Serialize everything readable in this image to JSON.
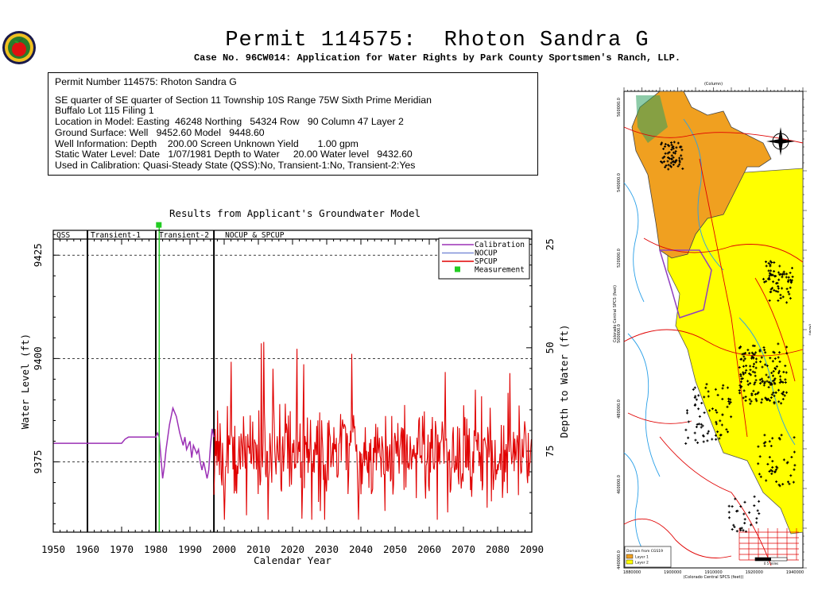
{
  "header": {
    "title": "Permit 114575:  Rhoton Sandra G",
    "subtitle": "Case No. 96CW014: Application for Water Rights by Park County Sportsmen's Ranch, LLP."
  },
  "info": {
    "line1": "Permit Number 114575: Rhoton Sandra G",
    "line2": "SE quarter of SE quarter of Section 11 Township 10S Range 75W Sixth Prime Meridian",
    "line3": "Buffalo Lot 115 Filing 1",
    "line4": "Location in Model: Easting  46248 Northing   54324 Row   90 Column 47 Layer 2",
    "line5": "Ground Surface: Well   9452.60 Model   9448.60",
    "line6": "Well Information: Depth    200.00 Screen Unknown Yield       1.00 gpm",
    "line7": "Static Water Level: Date   1/07/1981 Depth to Water     20.00 Water level   9432.60",
    "line8": "Used in Calibration: Quasi-Steady State (QSS):No, Transient-1:No, Transient-2:Yes"
  },
  "colors": {
    "calibration": "#9b30b5",
    "nocup": "#7f8fd8",
    "spcup": "#e00000",
    "measurement": "#22cc22",
    "map_orange": "#f0a020",
    "map_yellow": "#ffff00",
    "map_green": "#2fa060"
  },
  "chart_data": {
    "type": "line",
    "title": "Results from Applicant's Groundwater Model",
    "xlabel": "Calendar Year",
    "ylabel": "Water Level (ft)",
    "y2label": "Depth to Water (ft)",
    "xlim": [
      1950,
      2090
    ],
    "ylim": [
      9358,
      9431
    ],
    "xticks": [
      1950,
      1960,
      1970,
      1980,
      1990,
      2000,
      2010,
      2020,
      2030,
      2040,
      2050,
      2060,
      2070,
      2080,
      2090
    ],
    "yticks": [
      9375,
      9400,
      9425
    ],
    "y2ticks": [
      25,
      50,
      75
    ],
    "grid": true,
    "periods": [
      {
        "label": "QSS",
        "start": 1950,
        "end": 1960
      },
      {
        "label": "Transient-1",
        "start": 1960,
        "end": 1980
      },
      {
        "label": "Transient-2",
        "start": 1980,
        "end": 1997
      },
      {
        "label": "NOCUP  &  SPCUP",
        "start": 1997,
        "end": 2090
      }
    ],
    "legend": {
      "position": "top-right",
      "entries": [
        "Calibration",
        "NOCUP",
        "SPCUP",
        "Measurement"
      ]
    },
    "series": [
      {
        "name": "Calibration",
        "points": [
          [
            1950,
            9379.5
          ],
          [
            1960,
            9379.5
          ],
          [
            1970,
            9379.5
          ],
          [
            1971,
            9380.5
          ],
          [
            1972,
            9381
          ],
          [
            1980,
            9381
          ],
          [
            1980.5,
            9382
          ],
          [
            1981,
            9381
          ],
          [
            1981.5,
            9376
          ],
          [
            1982,
            9371
          ],
          [
            1982.5,
            9374
          ],
          [
            1983,
            9378
          ],
          [
            1984,
            9384
          ],
          [
            1985,
            9388
          ],
          [
            1986,
            9386
          ],
          [
            1987,
            9382
          ],
          [
            1988,
            9379
          ],
          [
            1988.5,
            9381
          ],
          [
            1989,
            9378
          ],
          [
            1990,
            9380
          ],
          [
            1990.5,
            9376
          ],
          [
            1991,
            9379
          ],
          [
            1992,
            9377
          ],
          [
            1992.5,
            9378
          ],
          [
            1993,
            9375
          ],
          [
            1993.5,
            9373
          ],
          [
            1994,
            9375
          ],
          [
            1995,
            9371
          ],
          [
            1995.5,
            9373
          ],
          [
            1996,
            9379
          ],
          [
            1996.5,
            9383
          ],
          [
            1997,
            9381
          ]
        ]
      },
      {
        "name": "SPCUP",
        "seed": 114575,
        "x_start": 1997,
        "x_end": 2090,
        "baseline": 9377,
        "amplitude": 8,
        "range": [
          9361,
          9404
        ]
      },
      {
        "name": "Measurement",
        "points": [
          [
            1981,
            9432.6
          ]
        ]
      }
    ]
  },
  "map": {
    "col_label": "(Column)",
    "row_label": "(Row)",
    "northing_label": "Colorado Central SPCS (feet)",
    "easting_label": "(Colorado Central SPCS (feet))",
    "left_ticks": [
      "560000.0",
      "540000.0",
      "520000.0",
      "500000.0",
      "480000.0",
      "460000.0",
      "440000.0"
    ],
    "bottom_ticks": [
      "1880000",
      "1900000",
      "1910000",
      "1920000",
      "1940000"
    ],
    "legend_title": "Domain from CGS19",
    "legend_layer1": "Layer 1",
    "legend_layer2": "Layer 2",
    "scale_label": "0  5 miles"
  }
}
